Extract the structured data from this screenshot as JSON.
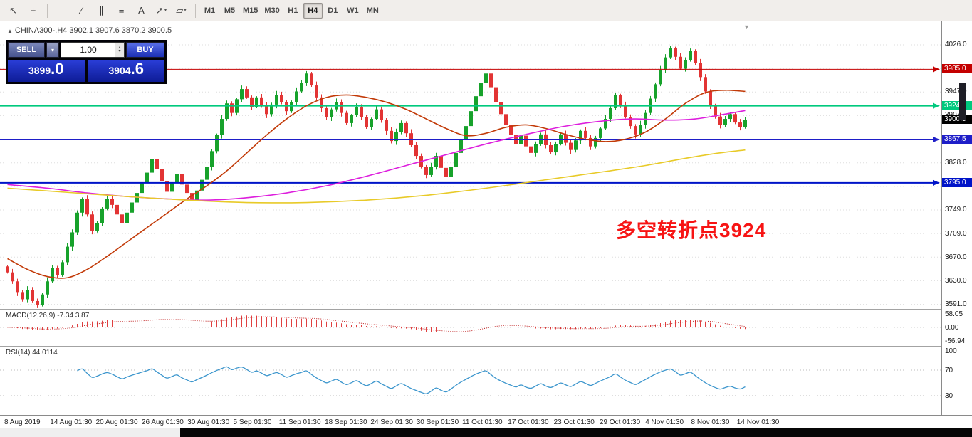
{
  "toolbar": {
    "tools": [
      {
        "name": "cursor",
        "glyph": "↖"
      },
      {
        "name": "crosshair",
        "glyph": "+"
      },
      {
        "name": "separator"
      },
      {
        "name": "horizontal-line",
        "glyph": "—"
      },
      {
        "name": "trendline",
        "glyph": "∕"
      },
      {
        "name": "equidistant-channel",
        "glyph": "∥"
      },
      {
        "name": "fibonacci",
        "glyph": "≡"
      },
      {
        "name": "text-label",
        "glyph": "A"
      },
      {
        "name": "arrow-objects",
        "glyph": "↗",
        "dropdown": true
      },
      {
        "name": "shapes",
        "glyph": "▱",
        "dropdown": true
      },
      {
        "name": "separator"
      }
    ],
    "timeframes": [
      "M1",
      "M5",
      "M15",
      "M30",
      "H1",
      "H4",
      "D1",
      "W1",
      "MN"
    ],
    "active_timeframe": "H4"
  },
  "header": {
    "symbol_line": "CHINA300-,H4 3902.1 3907.6 3870.2 3900.5"
  },
  "trade_panel": {
    "sell_label": "SELL",
    "buy_label": "BUY",
    "volume": "1.00",
    "sell_price": "3899.0",
    "buy_price": "3904.6"
  },
  "chart_data": {
    "type": "candlestick",
    "symbol": "CHINA300-",
    "timeframe": "H4",
    "ohlc_display": {
      "open": "3902.1",
      "high": "3907.6",
      "low": "3870.2",
      "close": "3900.5"
    },
    "first_open": 3655,
    "closes": [
      3645,
      3630,
      3612,
      3600,
      3615,
      3597,
      3591,
      3608,
      3630,
      3652,
      3640,
      3662,
      3688,
      3712,
      3745,
      3768,
      3742,
      3715,
      3728,
      3752,
      3768,
      3758,
      3742,
      3728,
      3745,
      3762,
      3778,
      3795,
      3812,
      3835,
      3818,
      3798,
      3780,
      3795,
      3810,
      3792,
      3778,
      3765,
      3782,
      3800,
      3822,
      3848,
      3875,
      3902,
      3928,
      3912,
      3935,
      3952,
      3938,
      3922,
      3938,
      3925,
      3910,
      3926,
      3942,
      3930,
      3915,
      3930,
      3948,
      3962,
      3978,
      3958,
      3938,
      3920,
      3905,
      3918,
      3930,
      3912,
      3895,
      3908,
      3922,
      3905,
      3888,
      3902,
      3918,
      3900,
      3882,
      3865,
      3880,
      3895,
      3878,
      3858,
      3840,
      3822,
      3808,
      3822,
      3840,
      3820,
      3805,
      3822,
      3845,
      3868,
      3890,
      3915,
      3940,
      3962,
      3978,
      3955,
      3930,
      3910,
      3892,
      3875,
      3860,
      3874,
      3856,
      3845,
      3860,
      3876,
      3858,
      3846,
      3860,
      3876,
      3862,
      3850,
      3866,
      3882,
      3870,
      3856,
      3870,
      3886,
      3902,
      3920,
      3942,
      3925,
      3905,
      3890,
      3876,
      3892,
      3912,
      3936,
      3960,
      3984,
      4005,
      4020,
      4006,
      3986,
      4000,
      4016,
      3996,
      3972,
      3948,
      3925,
      3906,
      3892,
      3902,
      3910,
      3896,
      3888,
      3900.5
    ],
    "levels": [
      {
        "price": 3985.0,
        "label": "3985.0",
        "color": "#c40000",
        "width": 1
      },
      {
        "price": 3924.0,
        "label": "3924.0",
        "color": "#00c97e",
        "width": 2
      },
      {
        "price": 3867.5,
        "label": "3867.5",
        "color": "#1e1ec8",
        "width": 2
      },
      {
        "price": 3795.0,
        "label": "3795.0",
        "color": "#0014c8",
        "width": 2
      }
    ],
    "current_price": {
      "value": 3900.5,
      "label": "3900.5",
      "color": "#000000"
    },
    "moving_averages": [
      {
        "name": "ma-fast",
        "color": "#c23a08",
        "points": [
          [
            0,
            3668
          ],
          [
            4,
            3650
          ],
          [
            8,
            3638
          ],
          [
            12,
            3636
          ],
          [
            16,
            3650
          ],
          [
            20,
            3672
          ],
          [
            24,
            3696
          ],
          [
            28,
            3720
          ],
          [
            32,
            3744
          ],
          [
            36,
            3768
          ],
          [
            40,
            3790
          ],
          [
            44,
            3815
          ],
          [
            48,
            3845
          ],
          [
            52,
            3875
          ],
          [
            56,
            3902
          ],
          [
            60,
            3924
          ],
          [
            64,
            3938
          ],
          [
            68,
            3942
          ],
          [
            72,
            3938
          ],
          [
            76,
            3930
          ],
          [
            80,
            3918
          ],
          [
            84,
            3902
          ],
          [
            88,
            3886
          ],
          [
            92,
            3874
          ],
          [
            96,
            3878
          ],
          [
            100,
            3888
          ],
          [
            104,
            3892
          ],
          [
            108,
            3886
          ],
          [
            112,
            3876
          ],
          [
            116,
            3868
          ],
          [
            120,
            3864
          ],
          [
            124,
            3868
          ],
          [
            128,
            3880
          ],
          [
            132,
            3902
          ],
          [
            136,
            3928
          ],
          [
            140,
            3946
          ],
          [
            144,
            3950
          ],
          [
            148,
            3948
          ]
        ]
      },
      {
        "name": "ma-mid",
        "color": "#dd1edd",
        "points": [
          [
            0,
            3792
          ],
          [
            8,
            3786
          ],
          [
            16,
            3778
          ],
          [
            24,
            3772
          ],
          [
            32,
            3768
          ],
          [
            40,
            3766
          ],
          [
            48,
            3770
          ],
          [
            56,
            3778
          ],
          [
            64,
            3790
          ],
          [
            72,
            3806
          ],
          [
            80,
            3824
          ],
          [
            88,
            3842
          ],
          [
            96,
            3860
          ],
          [
            104,
            3876
          ],
          [
            112,
            3890
          ],
          [
            120,
            3899
          ],
          [
            126,
            3902
          ],
          [
            132,
            3900
          ],
          [
            138,
            3902
          ],
          [
            144,
            3910
          ],
          [
            148,
            3916
          ]
        ]
      },
      {
        "name": "ma-slow",
        "color": "#e8ca28",
        "points": [
          [
            0,
            3786
          ],
          [
            12,
            3779
          ],
          [
            24,
            3772
          ],
          [
            36,
            3766
          ],
          [
            48,
            3762
          ],
          [
            60,
            3762
          ],
          [
            72,
            3766
          ],
          [
            84,
            3774
          ],
          [
            96,
            3786
          ],
          [
            108,
            3800
          ],
          [
            120,
            3814
          ],
          [
            128,
            3824
          ],
          [
            136,
            3836
          ],
          [
            142,
            3844
          ],
          [
            148,
            3850
          ]
        ]
      }
    ],
    "y_axis_labels": [
      {
        "value": 4026,
        "label": "4026.0"
      },
      {
        "value": 3947,
        "label": "3947.0"
      },
      {
        "value": 3907.5,
        "label": "3907.5"
      },
      {
        "value": 3828,
        "label": "3828.0"
      },
      {
        "value": 3749,
        "label": "3749.0"
      },
      {
        "value": 3709,
        "label": "3709.0"
      },
      {
        "value": 3670,
        "label": "3670.0"
      },
      {
        "value": 3630,
        "label": "3630.0"
      },
      {
        "value": 3591,
        "label": "3591.0"
      }
    ],
    "gridlines": [
      4026,
      3986.5,
      3947,
      3907.5,
      3868,
      3828.5,
      3789,
      3749.5,
      3710,
      3670.5,
      3631,
      3591.5
    ],
    "x_labels": [
      "8 Aug 2019",
      "14 Aug 01:30",
      "20 Aug 01:30",
      "26 Aug 01:30",
      "30 Aug 01:30",
      "5 Sep 01:30",
      "11 Sep 01:30",
      "18 Sep 01:30",
      "24 Sep 01:30",
      "30 Sep 01:30",
      "11 Oct 01:30",
      "17 Oct 01:30",
      "23 Oct 01:30",
      "29 Oct 01:30",
      "4 Nov 01:30",
      "8 Nov 01:30",
      "14 Nov 01:30"
    ],
    "indicators": {
      "macd": {
        "label": "MACD(12,26,9) -7.34 3.87",
        "params": [
          12,
          26,
          9
        ],
        "axis_labels": [
          "58.05",
          "0.00",
          "-56.94"
        ],
        "color": "#e04040",
        "signal_color": "#c02222"
      },
      "rsi": {
        "label": "RSI(14) 44.0114",
        "period": 14,
        "value": 44.0114,
        "axis_labels": [
          "100",
          "70",
          "30"
        ],
        "levels": [
          70,
          30
        ],
        "color": "#3c96cd"
      }
    },
    "annotation": {
      "text": "多空转折点3924",
      "color": "#f71414"
    },
    "candle_up_color": "#17a22b",
    "candle_down_color": "#e23434"
  }
}
